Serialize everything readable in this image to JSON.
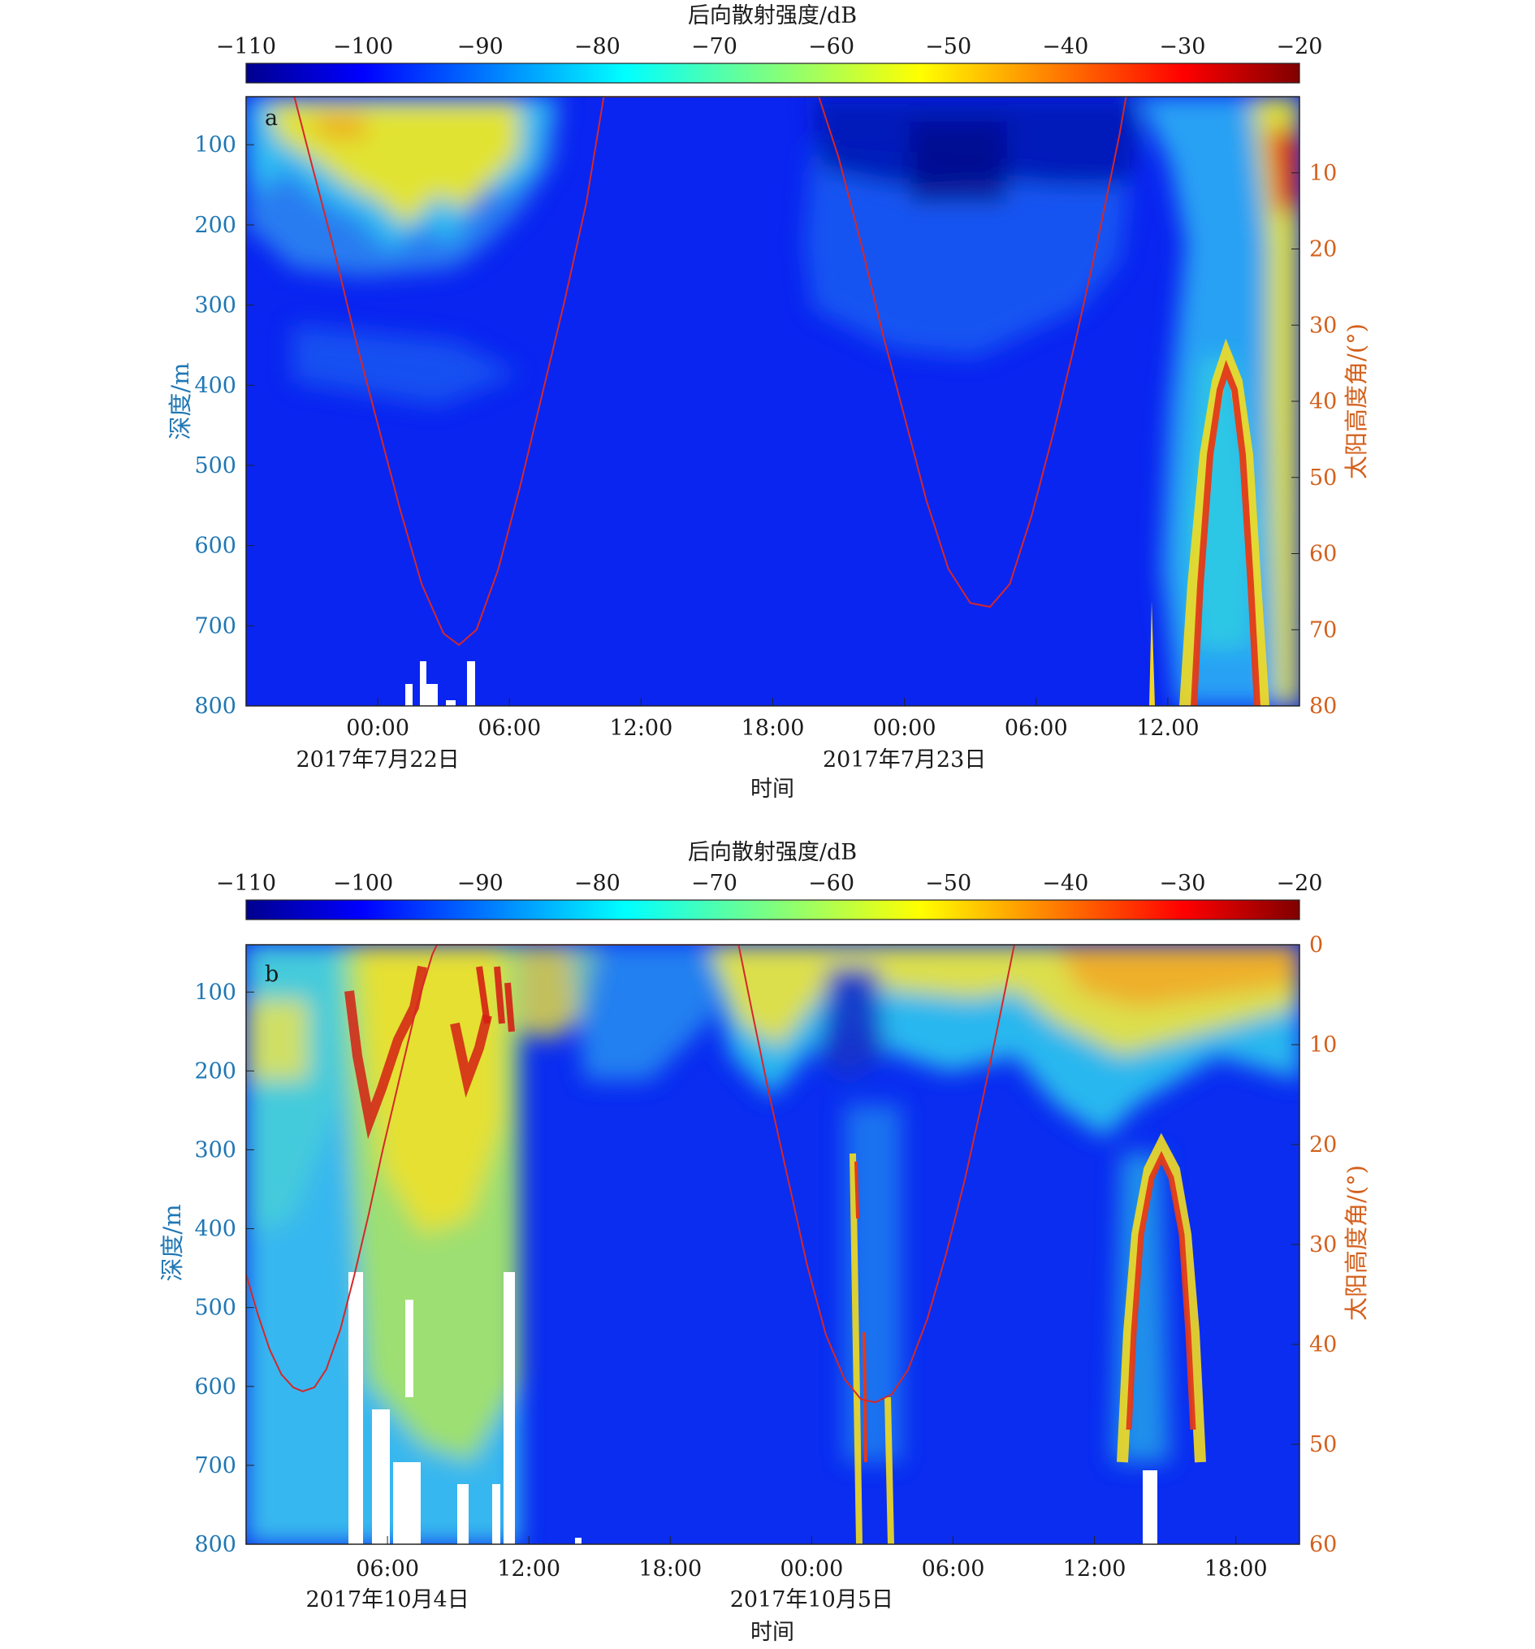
{
  "colors": {
    "left_axis": "#1f77b4",
    "right_axis": "#d4601c",
    "sun_curve": "#d62728",
    "colormap": "jet"
  },
  "chart_data": [
    {
      "type": "heatmap",
      "panel_letter": "a",
      "colorbar": {
        "title": "后向散射强度/dB",
        "range": [
          -110,
          -20
        ],
        "ticks": [
          "−110",
          "−100",
          "−90",
          "−80",
          "−70",
          "−60",
          "−50",
          "−40",
          "−30",
          "−20"
        ]
      },
      "x_ticks": [
        "00:00",
        "06:00",
        "12:00",
        "18:00",
        "00:00",
        "06:00",
        "12.00"
      ],
      "x_tick_hours": [
        24,
        30,
        36,
        42,
        48,
        54,
        60
      ],
      "x_range_hours": [
        18,
        66
      ],
      "date_labels": [
        "2017年7月22日",
        "2017年7月23日"
      ],
      "date_label_hours": [
        24,
        48
      ],
      "xlabel": "时间",
      "ylabel_left": "深度/m",
      "y_left_ticks": [
        "100",
        "200",
        "300",
        "400",
        "500",
        "600",
        "700",
        "800"
      ],
      "y_left_range": [
        40,
        800
      ],
      "ylabel_right": "太阳高度角/(°)",
      "y_right_ticks": [
        "10",
        "20",
        "30",
        "40",
        "50",
        "60",
        "70",
        "80"
      ],
      "y_right_range": [
        0,
        80
      ],
      "sun_elevation": {
        "x_hours": [
          20.2,
          21,
          22,
          23,
          24,
          25,
          26,
          27,
          27.7,
          28.5,
          29.5,
          30.5,
          31.5,
          32.5,
          33.5,
          34.3,
          44.1,
          45,
          46,
          47,
          48,
          49,
          50,
          51,
          51.9,
          52.8,
          53.8,
          54.8,
          55.8,
          56.8,
          57.8,
          58.1
        ],
        "y_degrees": [
          0,
          9,
          20,
          32,
          43,
          54,
          64,
          70.5,
          72,
          70,
          62,
          51,
          39,
          27,
          14,
          0,
          0,
          8,
          19,
          31,
          42,
          53,
          62,
          66.5,
          67,
          64,
          55,
          44,
          32,
          19,
          5,
          0
        ]
      }
    },
    {
      "type": "heatmap",
      "panel_letter": "b",
      "colorbar": {
        "title": "后向散射强度/dB",
        "range": [
          -110,
          -20
        ],
        "ticks": [
          "−110",
          "−100",
          "−90",
          "−80",
          "−70",
          "−60",
          "−50",
          "−40",
          "−30",
          "−20"
        ]
      },
      "x_ticks": [
        "06:00",
        "12:00",
        "18:00",
        "00:00",
        "06:00",
        "12:00",
        "18:00"
      ],
      "x_tick_hours": [
        6,
        12,
        18,
        24,
        30,
        36,
        42
      ],
      "x_range_hours": [
        0,
        44.7
      ],
      "date_labels": [
        "2017年10月4日",
        "2017年10月5日"
      ],
      "date_label_hours": [
        6,
        24
      ],
      "xlabel": "时间",
      "ylabel_left": "深度/m",
      "y_left_ticks": [
        "100",
        "200",
        "300",
        "400",
        "500",
        "600",
        "700",
        "800"
      ],
      "y_left_range": [
        40,
        800
      ],
      "ylabel_right": "太阳高度角/(°)",
      "y_right_ticks": [
        "0",
        "10",
        "20",
        "30",
        "40",
        "50",
        "60"
      ],
      "y_right_range": [
        0,
        60
      ],
      "sun_elevation": {
        "x_hours": [
          0,
          0.5,
          1,
          1.5,
          2,
          2.4,
          2.9,
          3.4,
          4,
          4.6,
          5.2,
          5.8,
          6.5,
          7.2,
          7.9,
          8.1,
          20.9,
          21.5,
          22.2,
          23,
          23.8,
          24.6,
          25.4,
          26.1,
          26.7,
          27.4,
          28.1,
          28.9,
          29.7,
          30.5,
          31.3,
          32,
          32.6
        ],
        "y_degrees": [
          33,
          37,
          40.5,
          43,
          44.3,
          44.7,
          44.3,
          42.5,
          38.5,
          33,
          27,
          20.5,
          13.5,
          6.5,
          1,
          0,
          0,
          7,
          15,
          23.5,
          32,
          39,
          43.5,
          45.5,
          45.8,
          45,
          42.5,
          37.5,
          31,
          23.5,
          15,
          7,
          0
        ]
      }
    }
  ]
}
